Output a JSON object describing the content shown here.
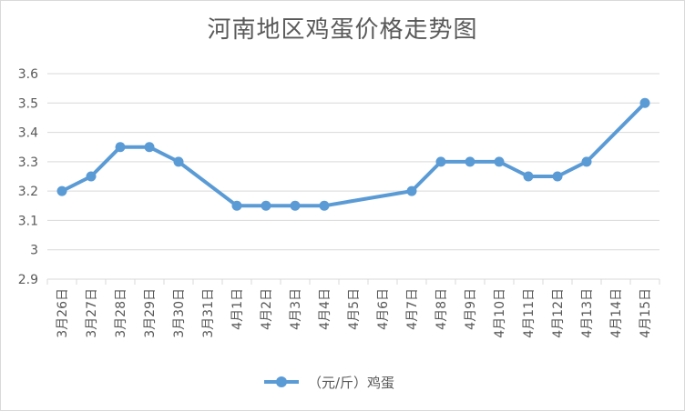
{
  "chart_data": {
    "type": "line",
    "title": "河南地区鸡蛋价格走势图",
    "categories": [
      "3月26日",
      "3月27日",
      "3月28日",
      "3月29日",
      "3月30日",
      "3月31日",
      "4月1日",
      "4月2日",
      "4月3日",
      "4月4日",
      "4月5日",
      "4月6日",
      "4月7日",
      "4月8日",
      "4月9日",
      "4月10日",
      "4月11日",
      "4月12日",
      "4月13日",
      "4月14日",
      "4月15日"
    ],
    "series": [
      {
        "name": "（元/斤）鸡蛋",
        "values": [
          3.2,
          3.25,
          3.35,
          3.35,
          3.3,
          null,
          3.15,
          3.15,
          3.15,
          3.15,
          null,
          null,
          3.2,
          3.3,
          3.3,
          3.3,
          3.25,
          3.25,
          3.3,
          null,
          3.5
        ],
        "color": "#5b9bd5"
      }
    ],
    "y_ticks": [
      "2.9",
      "3",
      "3.1",
      "3.2",
      "3.3",
      "3.4",
      "3.5",
      "3.6"
    ],
    "ylim": [
      2.9,
      3.6
    ],
    "grid": true,
    "legend": "bottom-center",
    "xlabel": "",
    "ylabel": ""
  }
}
